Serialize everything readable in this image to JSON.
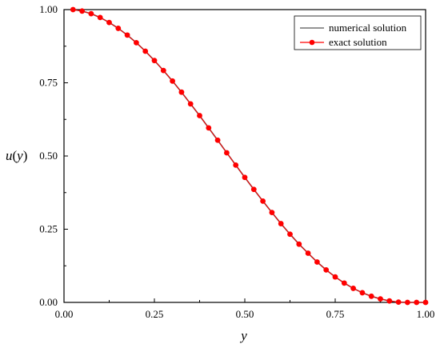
{
  "chart_data": {
    "type": "line",
    "xlabel": "y",
    "ylabel": "u(y)",
    "xlim": [
      0,
      1
    ],
    "ylim": [
      0,
      1
    ],
    "x_ticks": [
      "0.00",
      "0.25",
      "0.50",
      "0.75",
      "1.00"
    ],
    "y_ticks": [
      "0.00",
      "0.25",
      "0.50",
      "0.75",
      "1.00"
    ],
    "grid": false,
    "legend_position": "top-right",
    "series": [
      {
        "name": "numerical solution",
        "color": "#555555",
        "marker": "none",
        "x": [
          0.025,
          0.05,
          0.075,
          0.1,
          0.125,
          0.15,
          0.175,
          0.2,
          0.225,
          0.25,
          0.275,
          0.3,
          0.325,
          0.35,
          0.375,
          0.4,
          0.425,
          0.45,
          0.475,
          0.5,
          0.525,
          0.55,
          0.575,
          0.6,
          0.625,
          0.65,
          0.675,
          0.7,
          0.725,
          0.75,
          0.775,
          0.8,
          0.825,
          0.85,
          0.875,
          0.9,
          0.925,
          0.95,
          0.975,
          1.0
        ],
        "y": [
          1.0,
          0.995,
          0.986,
          0.973,
          0.956,
          0.936,
          0.913,
          0.887,
          0.858,
          0.826,
          0.792,
          0.756,
          0.718,
          0.678,
          0.638,
          0.596,
          0.554,
          0.511,
          0.469,
          0.427,
          0.386,
          0.346,
          0.307,
          0.269,
          0.233,
          0.199,
          0.168,
          0.138,
          0.111,
          0.087,
          0.066,
          0.048,
          0.033,
          0.021,
          0.012,
          0.005,
          0.001,
          0.0,
          0.0,
          0.0
        ]
      },
      {
        "name": "exact solution",
        "color": "#ff0000",
        "marker": "circle",
        "x": [
          0.025,
          0.05,
          0.075,
          0.1,
          0.125,
          0.15,
          0.175,
          0.2,
          0.225,
          0.25,
          0.275,
          0.3,
          0.325,
          0.35,
          0.375,
          0.4,
          0.425,
          0.45,
          0.475,
          0.5,
          0.525,
          0.55,
          0.575,
          0.6,
          0.625,
          0.65,
          0.675,
          0.7,
          0.725,
          0.75,
          0.775,
          0.8,
          0.825,
          0.85,
          0.875,
          0.9,
          0.925,
          0.95,
          0.975,
          1.0
        ],
        "y": [
          1.0,
          0.995,
          0.986,
          0.973,
          0.956,
          0.936,
          0.913,
          0.887,
          0.858,
          0.826,
          0.792,
          0.756,
          0.718,
          0.678,
          0.638,
          0.596,
          0.554,
          0.511,
          0.469,
          0.427,
          0.386,
          0.346,
          0.307,
          0.269,
          0.233,
          0.199,
          0.168,
          0.138,
          0.111,
          0.087,
          0.066,
          0.048,
          0.033,
          0.021,
          0.012,
          0.005,
          0.001,
          0.0,
          0.0,
          0.0
        ]
      }
    ]
  }
}
